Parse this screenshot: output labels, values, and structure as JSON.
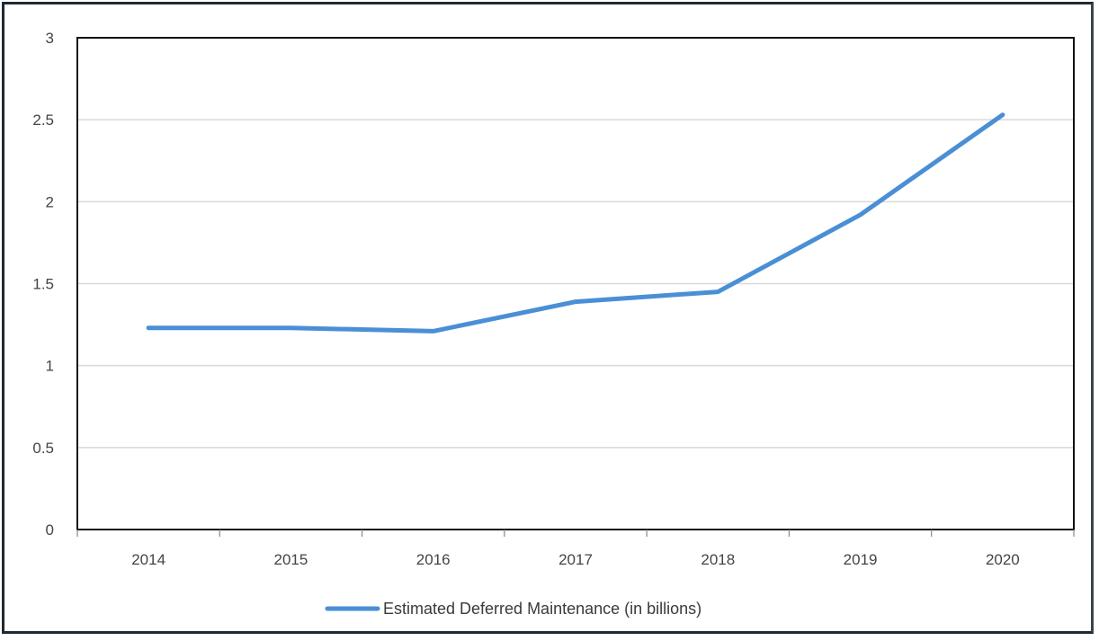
{
  "chart_data": {
    "type": "line",
    "categories": [
      "2014",
      "2015",
      "2016",
      "2017",
      "2018",
      "2019",
      "2020"
    ],
    "series": [
      {
        "name": "Estimated Deferred Maintenance (in billions)",
        "values": [
          1.23,
          1.23,
          1.21,
          1.39,
          1.45,
          1.92,
          2.53
        ],
        "color": "#4a8fd6"
      }
    ],
    "ylim": [
      0,
      3
    ],
    "yticks": [
      "0",
      "0.5",
      "1",
      "1.5",
      "2",
      "2.5",
      "3"
    ],
    "grid": true,
    "legend_position": "bottom"
  }
}
